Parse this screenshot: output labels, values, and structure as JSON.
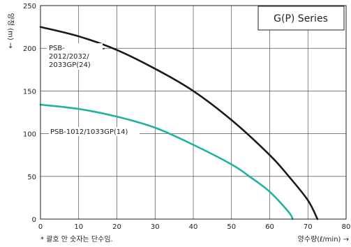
{
  "chart_data": {
    "type": "line",
    "title": "G(P) Series",
    "xlabel": "양수량(ℓ/min) →",
    "ylabel": "양정 (m) →",
    "xlim": [
      0,
      80
    ],
    "ylim": [
      0,
      250
    ],
    "xticks": [
      0,
      10,
      20,
      30,
      40,
      50,
      60,
      70,
      80
    ],
    "yticks": [
      0,
      50,
      100,
      150,
      200,
      250
    ],
    "grid": true,
    "series": [
      {
        "name": "PSB-2012/2032/2033GP(24)",
        "label_lines": [
          "PSB-",
          "2012/2032/",
          "2033GP(24)"
        ],
        "color": "#1a1a1a",
        "x": [
          0,
          10,
          20,
          30,
          40,
          50,
          60,
          65,
          70,
          72.5
        ],
        "y": [
          225,
          214,
          198,
          176,
          150,
          116,
          75,
          50,
          22,
          0
        ]
      },
      {
        "name": "PSB-1012/1033GP(14)",
        "label_lines": [
          "PSB-1012/1033GP(14)"
        ],
        "color": "#20b2a0",
        "x": [
          0,
          10,
          20,
          30,
          40,
          50,
          55,
          60,
          65,
          66
        ],
        "y": [
          134,
          129,
          120,
          107,
          87,
          64,
          49,
          32,
          8,
          0
        ]
      }
    ],
    "footnote": "* 괄호 안 숫자는 단수임."
  }
}
